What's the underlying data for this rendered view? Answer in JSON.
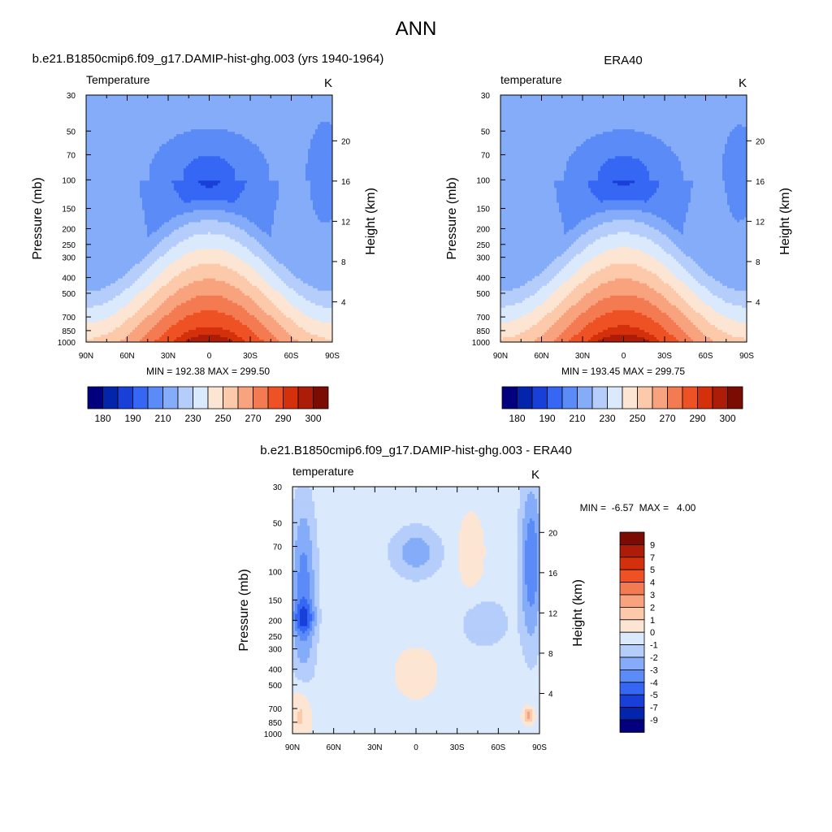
{
  "figure": {
    "title": "ANN"
  },
  "panels": {
    "model": {
      "title": "b.e21.B1850cmip6.f09_g17.DAMIP-hist-ghg.003 (yrs 1940-1964)",
      "var_label": "Temperature",
      "units": "K",
      "stats": "MIN = 192.38  MAX = 299.50"
    },
    "obs": {
      "title": "ERA40",
      "var_label": "temperature",
      "units": "K",
      "stats": "MIN = 193.45  MAX = 299.75"
    },
    "diff": {
      "title": "b.e21.B1850cmip6.f09_g17.DAMIP-hist-ghg.003 - ERA40",
      "var_label": "temperature",
      "units": "K",
      "stats": "MIN =  -6.57  MAX =   4.00"
    }
  },
  "axes": {
    "ylabel_left": "Pressure (mb)",
    "ylabel_right": "Height (km)",
    "x_ticks": [
      "90N",
      "60N",
      "30N",
      "0",
      "30S",
      "60S",
      "90S"
    ],
    "pressure_ticks": [
      "30",
      "50",
      "70",
      "100",
      "150",
      "200",
      "250",
      "300",
      "400",
      "500",
      "700",
      "850",
      "1000"
    ],
    "height_ticks": [
      "20",
      "16",
      "12",
      "8",
      "4"
    ]
  },
  "colorbars": {
    "abs_labels": [
      "180",
      "190",
      "210",
      "230",
      "250",
      "270",
      "290",
      "300"
    ],
    "abs_colors": [
      "#02007e",
      "#0325ac",
      "#1840d9",
      "#3666f4",
      "#5b8bf7",
      "#85acf9",
      "#b4cdfb",
      "#dbe9fc",
      "#fde5d3",
      "#fcc9aa",
      "#f9a27e",
      "#f47a52",
      "#ee5224",
      "#d4300c",
      "#ad1c08",
      "#7b0c04"
    ],
    "diff_labels": [
      "9",
      "7",
      "5",
      "4",
      "3",
      "2",
      "1",
      "0",
      "-1",
      "-2",
      "-3",
      "-4",
      "-5",
      "-7",
      "-9"
    ],
    "diff_colors": [
      "#7b0c04",
      "#ad1c08",
      "#d4300c",
      "#ee5224",
      "#f47a52",
      "#f9a27e",
      "#fcc9aa",
      "#fde5d3",
      "#dbe9fc",
      "#b4cdfb",
      "#85acf9",
      "#5b8bf7",
      "#3666f4",
      "#1840d9",
      "#0325ac",
      "#02007e"
    ]
  },
  "chart_data": [
    {
      "type": "heatmap",
      "title": "b.e21.B1850cmip6.f09_g17.DAMIP-hist-ghg.003 (yrs 1940-1964)",
      "variable": "Temperature",
      "units": "K",
      "xlabel": "",
      "ylabel": "Pressure (mb)",
      "ylabel_right": "Height (km)",
      "x_range": [
        "90N",
        "90S"
      ],
      "y_range_mb": [
        1000,
        30
      ],
      "min": 192.38,
      "max": 299.5,
      "levels": [
        180,
        185,
        190,
        200,
        210,
        220,
        230,
        240,
        250,
        260,
        270,
        280,
        290,
        295,
        300
      ]
    },
    {
      "type": "heatmap",
      "title": "ERA40",
      "variable": "temperature",
      "units": "K",
      "xlabel": "",
      "ylabel": "Pressure (mb)",
      "ylabel_right": "Height (km)",
      "x_range": [
        "90N",
        "90S"
      ],
      "y_range_mb": [
        1000,
        30
      ],
      "min": 193.45,
      "max": 299.75,
      "levels": [
        180,
        185,
        190,
        200,
        210,
        220,
        230,
        240,
        250,
        260,
        270,
        280,
        290,
        295,
        300
      ]
    },
    {
      "type": "heatmap",
      "title": "b.e21.B1850cmip6.f09_g17.DAMIP-hist-ghg.003 - ERA40",
      "variable": "temperature",
      "units": "K",
      "xlabel": "",
      "ylabel": "Pressure (mb)",
      "ylabel_right": "Height (km)",
      "x_range": [
        "90N",
        "90S"
      ],
      "y_range_mb": [
        1000,
        30
      ],
      "min": -6.57,
      "max": 4.0,
      "levels": [
        -9,
        -7,
        -5,
        -4,
        -3,
        -2,
        -1,
        0,
        1,
        2,
        3,
        4,
        5,
        7,
        9
      ]
    }
  ]
}
